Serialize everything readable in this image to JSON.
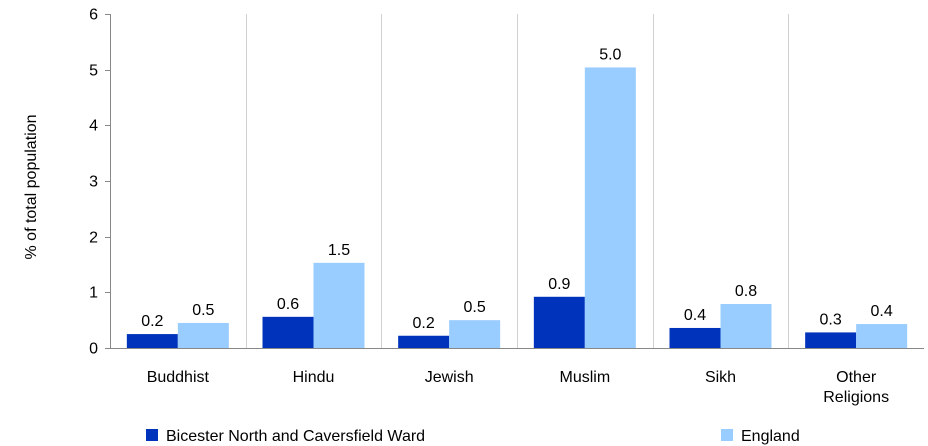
{
  "chart_data": {
    "type": "bar",
    "ylabel": "% of total population",
    "ylim": [
      0,
      6
    ],
    "yticks": [
      "0",
      "1",
      "2",
      "3",
      "4",
      "5",
      "6"
    ],
    "grid": "vertical category separators",
    "legend_position": "bottom",
    "categories": [
      [
        "Buddhist"
      ],
      [
        "Hindu"
      ],
      [
        "Jewish"
      ],
      [
        "Muslim"
      ],
      [
        "Sikh"
      ],
      [
        "Other",
        "Religions"
      ]
    ],
    "series": [
      {
        "name": "Bicester North and Caversfield Ward",
        "color": "#0033bb",
        "values": [
          0.25,
          0.56,
          0.22,
          0.92,
          0.36,
          0.28
        ],
        "labels": [
          "0.2",
          "0.6",
          "0.2",
          "0.9",
          "0.4",
          "0.3"
        ]
      },
      {
        "name": "England",
        "color": "#99ccff",
        "values": [
          0.45,
          1.53,
          0.5,
          5.04,
          0.79,
          0.43
        ],
        "labels": [
          "0.5",
          "1.5",
          "0.5",
          "5.0",
          "0.8",
          "0.4"
        ]
      }
    ]
  }
}
